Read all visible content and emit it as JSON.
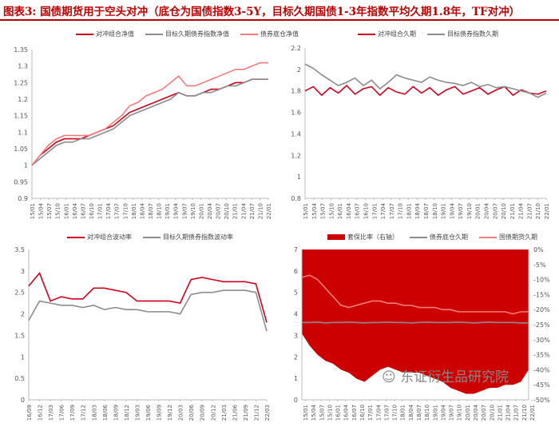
{
  "title": "图表3: 国债期货用于空头对冲（底仓为国债指数3-5Y，目标久期国债1-3年指数平均久期1.8年，TF对冲）",
  "watermark": "东证衍生品研究院",
  "colors": {
    "red": "#d0021b",
    "gray": "#8c8c8c",
    "pink": "#f47b7b",
    "area": "#cc0000"
  },
  "chart_data": [
    {
      "type": "line",
      "ylim": [
        0.9,
        1.35
      ],
      "yticks": [
        "0.9",
        "0.95",
        "1",
        "1.05",
        "1.1",
        "1.15",
        "1.2",
        "1.25",
        "1.3",
        "1.35"
      ],
      "xticks": [
        "15/01",
        "15/04",
        "15/07",
        "15/10",
        "16/01",
        "16/04",
        "16/07",
        "16/10",
        "17/01",
        "17/04",
        "17/07",
        "17/10",
        "18/01",
        "18/04",
        "18/07",
        "18/10",
        "19/01",
        "19/04",
        "19/07",
        "19/10",
        "20/01",
        "20/04",
        "20/07",
        "20/10",
        "21/01",
        "21/04",
        "21/07",
        "21/10",
        "22/01"
      ],
      "series": [
        {
          "name": "对冲组合净值",
          "color": "#d0021b",
          "values": [
            1.0,
            1.03,
            1.05,
            1.07,
            1.08,
            1.08,
            1.08,
            1.09,
            1.1,
            1.11,
            1.12,
            1.14,
            1.16,
            1.17,
            1.18,
            1.19,
            1.2,
            1.21,
            1.22,
            1.21,
            1.21,
            1.22,
            1.23,
            1.23,
            1.24,
            1.25,
            1.25,
            1.26,
            1.26,
            1.26
          ]
        },
        {
          "name": "目标久期债券指数净值",
          "color": "#8c8c8c",
          "values": [
            1.0,
            1.02,
            1.04,
            1.06,
            1.07,
            1.07,
            1.08,
            1.08,
            1.09,
            1.1,
            1.11,
            1.13,
            1.15,
            1.16,
            1.17,
            1.18,
            1.19,
            1.2,
            1.22,
            1.21,
            1.21,
            1.22,
            1.22,
            1.23,
            1.24,
            1.24,
            1.25,
            1.26,
            1.26,
            1.26
          ]
        },
        {
          "name": "债券底仓净值",
          "color": "#f47b7b",
          "values": [
            1.0,
            1.03,
            1.06,
            1.08,
            1.09,
            1.09,
            1.09,
            1.09,
            1.1,
            1.11,
            1.13,
            1.15,
            1.18,
            1.19,
            1.21,
            1.22,
            1.23,
            1.25,
            1.27,
            1.24,
            1.24,
            1.25,
            1.26,
            1.27,
            1.28,
            1.29,
            1.29,
            1.3,
            1.31,
            1.31
          ]
        }
      ]
    },
    {
      "type": "line",
      "ylim": [
        0.8,
        2.2
      ],
      "yticks": [
        "0.8",
        "1",
        "1.2",
        "1.4",
        "1.6",
        "1.8",
        "2",
        "2.2"
      ],
      "xticks": [
        "15/01",
        "15/04",
        "15/07",
        "15/10",
        "16/01",
        "16/04",
        "16/07",
        "16/10",
        "17/01",
        "17/04",
        "17/07",
        "17/10",
        "18/01",
        "18/04",
        "18/07",
        "18/10",
        "19/01",
        "19/04",
        "19/07",
        "19/10",
        "20/01",
        "20/04",
        "20/07",
        "20/10",
        "21/01",
        "21/04",
        "21/07",
        "21/10",
        "22/01"
      ],
      "series": [
        {
          "name": "对冲组合久期",
          "color": "#d0021b",
          "values": [
            1.8,
            1.84,
            1.76,
            1.83,
            1.78,
            1.85,
            1.77,
            1.82,
            1.84,
            1.76,
            1.83,
            1.79,
            1.77,
            1.84,
            1.78,
            1.83,
            1.76,
            1.81,
            1.84,
            1.77,
            1.8,
            1.83,
            1.77,
            1.81,
            1.84,
            1.76,
            1.81,
            1.78,
            1.77,
            1.8
          ]
        },
        {
          "name": "目标债券指数久期",
          "color": "#8c8c8c",
          "values": [
            2.05,
            2.01,
            1.95,
            1.9,
            1.85,
            1.88,
            1.92,
            1.85,
            1.9,
            1.82,
            1.88,
            1.95,
            1.92,
            1.9,
            1.88,
            1.93,
            1.9,
            1.88,
            1.87,
            1.85,
            1.88,
            1.84,
            1.86,
            1.83,
            1.84,
            1.82,
            1.8,
            1.78,
            1.74,
            1.78
          ]
        }
      ]
    },
    {
      "type": "line",
      "ylim": [
        0,
        3.5
      ],
      "yticks": [
        "0",
        "0.5",
        "1",
        "1.5",
        "2",
        "2.5",
        "3",
        "3.5"
      ],
      "xticks": [
        "16/09",
        "16/12",
        "17/03",
        "17/06",
        "17/09",
        "17/12",
        "18/03",
        "18/06",
        "18/09",
        "18/12",
        "19/03",
        "19/06",
        "19/09",
        "19/12",
        "20/03",
        "20/06",
        "20/09",
        "20/12",
        "21/03",
        "21/06",
        "21/09",
        "21/12",
        "22/03"
      ],
      "series": [
        {
          "name": "对冲组合波动率",
          "color": "#d0021b",
          "values": [
            2.65,
            2.95,
            2.3,
            2.4,
            2.35,
            2.35,
            2.6,
            2.6,
            2.55,
            2.5,
            2.3,
            2.3,
            2.3,
            2.3,
            2.25,
            2.8,
            2.85,
            2.8,
            2.75,
            2.75,
            2.75,
            2.7,
            1.8
          ]
        },
        {
          "name": "目标久期债券指数波动率",
          "color": "#8c8c8c",
          "values": [
            1.85,
            2.3,
            2.25,
            2.2,
            2.2,
            2.15,
            2.2,
            2.1,
            2.15,
            2.1,
            2.1,
            2.05,
            2.05,
            2.05,
            2.0,
            2.45,
            2.5,
            2.5,
            2.55,
            2.55,
            2.55,
            2.5,
            1.6
          ]
        }
      ]
    },
    {
      "type": "area+line",
      "ylim": [
        0,
        7
      ],
      "yticks": [
        "0",
        "1",
        "2",
        "3",
        "4",
        "5",
        "6",
        "7"
      ],
      "y2lim": [
        -50,
        0
      ],
      "y2ticks": [
        "-50%",
        "-45%",
        "-40%",
        "-35%",
        "-30%",
        "-25%",
        "-20%",
        "-15%",
        "-10%",
        "-5%",
        "0%"
      ],
      "xticks": [
        "15/01",
        "15/04",
        "15/07",
        "15/10",
        "16/01",
        "16/04",
        "16/07",
        "16/10",
        "17/01",
        "17/04",
        "17/07",
        "17/10",
        "18/01",
        "18/04",
        "18/07",
        "18/10",
        "19/01",
        "19/04",
        "19/07",
        "19/10",
        "20/01",
        "20/04",
        "20/07",
        "20/10",
        "21/01",
        "21/04",
        "21/07",
        "21/10",
        "22/01"
      ],
      "area": {
        "name": "套保比率（右轴）",
        "color": "#cc0000",
        "values": [
          -28,
          -32,
          -35,
          -37,
          -38,
          -40,
          -41,
          -43,
          -44,
          -42,
          -40,
          -39,
          -40,
          -41,
          -41,
          -41,
          -42,
          -43,
          -44,
          -46,
          -47,
          -48,
          -48,
          -47,
          -46,
          -46,
          -45,
          -45,
          -44,
          -40
        ]
      },
      "series": [
        {
          "name": "债券底仓久期",
          "color": "#8c8c8c",
          "values": [
            3.6,
            3.6,
            3.62,
            3.58,
            3.6,
            3.6,
            3.62,
            3.6,
            3.58,
            3.6,
            3.6,
            3.62,
            3.6,
            3.6,
            3.58,
            3.6,
            3.62,
            3.6,
            3.6,
            3.6,
            3.62,
            3.6,
            3.58,
            3.6,
            3.62,
            3.6,
            3.6,
            3.6,
            3.58,
            3.58
          ]
        },
        {
          "name": "国债期货久期",
          "color": "#f47b7b",
          "values": [
            5.7,
            5.8,
            5.6,
            5.2,
            4.8,
            4.4,
            4.3,
            4.4,
            4.5,
            4.6,
            4.6,
            4.5,
            4.5,
            4.4,
            4.4,
            4.3,
            4.3,
            4.3,
            4.2,
            4.2,
            4.1,
            4.1,
            4.1,
            4.1,
            4.1,
            4.1,
            4.1,
            4.0,
            4.1,
            4.1
          ]
        }
      ]
    }
  ]
}
